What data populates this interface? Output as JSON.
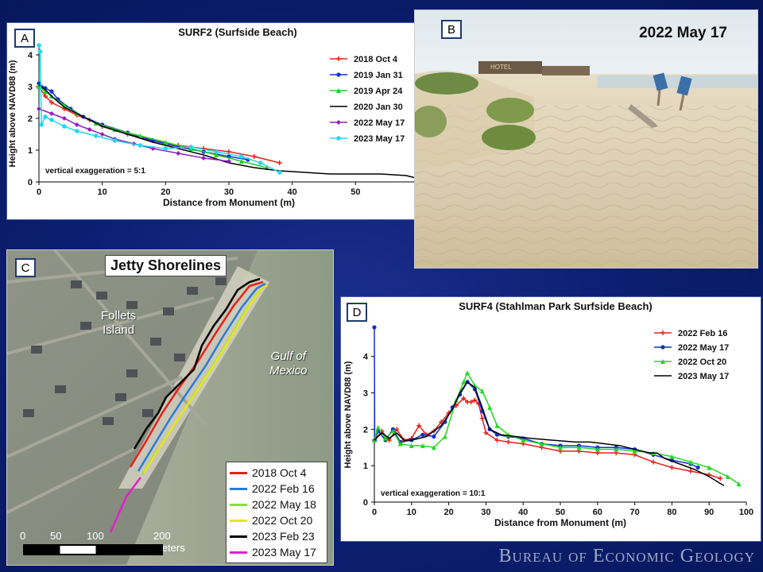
{
  "panels": {
    "a_label": "A",
    "b_label": "B",
    "c_label": "C",
    "d_label": "D"
  },
  "photo": {
    "date": "2022 May 17",
    "sign_text": "HOTEL"
  },
  "map": {
    "title": "Jetty Shorelines",
    "place1": "Follets\nIsland",
    "place1_line1": "Follets",
    "place1_line2": "Island",
    "place2_line1": "Gulf of",
    "place2_line2": "Mexico",
    "scale_labels": [
      "0",
      "50",
      "100",
      "200 Meters"
    ],
    "legend": [
      {
        "label": "2018 Oct 4",
        "color": "#e8201a"
      },
      {
        "label": "2022 Feb 16",
        "color": "#2a7ad8"
      },
      {
        "label": "2022 May 18",
        "color": "#8de22a"
      },
      {
        "label": "2022 Oct 20",
        "color": "#e8e51a"
      },
      {
        "label": "2023 Feb 23",
        "color": "#000000"
      },
      {
        "label": "2023 May 17",
        "color": "#e020c8"
      }
    ]
  },
  "chart_data": [
    {
      "type": "line",
      "title": "SURF2 (Surfside Beach)",
      "xlabel": "Distance from Monument (m)",
      "ylabel": "Height above NAVD88 (m)",
      "xlim": [
        0,
        60
      ],
      "ylim": [
        0,
        4.3
      ],
      "xticks": [
        0,
        10,
        20,
        30,
        40,
        50,
        60
      ],
      "yticks": [
        0,
        1,
        2,
        3,
        4
      ],
      "annotation": "vertical exaggeration = 5:1",
      "legend_position": "top-right",
      "series": [
        {
          "name": "2018 Oct 4",
          "color": "#e8201a",
          "marker": "plus",
          "x": [
            0,
            1,
            2,
            4,
            6,
            8,
            10,
            14,
            18,
            22,
            26,
            30,
            34,
            38
          ],
          "y": [
            3.0,
            2.7,
            2.5,
            2.3,
            2.1,
            1.95,
            1.75,
            1.5,
            1.3,
            1.15,
            1.05,
            0.95,
            0.8,
            0.6
          ]
        },
        {
          "name": "2019 Jan 31",
          "color": "#1030d8",
          "marker": "dot",
          "x": [
            0,
            1,
            2,
            3,
            5,
            7,
            10,
            14,
            18,
            22,
            26,
            30,
            33
          ],
          "y": [
            3.1,
            2.95,
            2.85,
            2.6,
            2.3,
            2.05,
            1.8,
            1.55,
            1.3,
            1.1,
            0.95,
            0.8,
            0.7
          ]
        },
        {
          "name": "2019 Apr 24",
          "color": "#20d020",
          "marker": "triangle",
          "x": [
            0,
            1,
            2,
            4,
            6,
            9,
            12,
            16,
            20,
            24,
            28,
            32,
            36
          ],
          "y": [
            3.0,
            2.85,
            2.7,
            2.4,
            2.15,
            1.85,
            1.65,
            1.45,
            1.25,
            1.05,
            0.85,
            0.65,
            0.45
          ]
        },
        {
          "name": "2020 Jan 30",
          "color": "#000000",
          "marker": "none",
          "x": [
            0,
            1,
            2,
            4,
            6,
            8,
            10,
            14,
            18,
            22,
            26,
            30,
            34,
            38,
            42,
            46,
            50,
            54,
            58,
            60
          ],
          "y": [
            3.05,
            2.9,
            2.7,
            2.35,
            2.15,
            1.95,
            1.75,
            1.5,
            1.25,
            1.05,
            0.85,
            0.6,
            0.45,
            0.35,
            0.3,
            0.25,
            0.25,
            0.25,
            0.2,
            0.1
          ]
        },
        {
          "name": "2022 May 17",
          "color": "#9020c0",
          "marker": "diamond",
          "x": [
            0,
            2,
            4,
            6,
            8,
            10,
            12,
            15,
            18,
            22,
            26,
            30
          ],
          "y": [
            2.3,
            2.15,
            2.0,
            1.8,
            1.65,
            1.5,
            1.35,
            1.2,
            1.05,
            0.9,
            0.75,
            0.65
          ]
        },
        {
          "name": "2023 May 17",
          "color": "#20d8f0",
          "marker": "star",
          "x": [
            0,
            0.2,
            0.4,
            1,
            2,
            4,
            6,
            9,
            12,
            16,
            20,
            24,
            28,
            32,
            35,
            38
          ],
          "y": [
            4.3,
            4.1,
            1.8,
            2.05,
            1.95,
            1.75,
            1.6,
            1.45,
            1.3,
            1.15,
            1.05,
            1.1,
            0.95,
            0.8,
            0.6,
            0.3
          ]
        }
      ]
    },
    {
      "type": "line",
      "title": "SURF4 (Stahlman Park Surfside Beach)",
      "xlabel": "Distance from Monument (m)",
      "ylabel": "Height above NAVD88 (m)",
      "xlim": [
        0,
        100
      ],
      "ylim": [
        0,
        4.8
      ],
      "xticks": [
        0,
        10,
        20,
        30,
        40,
        50,
        60,
        70,
        80,
        90,
        100
      ],
      "yticks": [
        0,
        1,
        2,
        3,
        4
      ],
      "annotation": "vertical exaggeration = 10:1",
      "legend_position": "top-right",
      "series": [
        {
          "name": "2022 Feb 16",
          "color": "#e8201a",
          "marker": "plus",
          "x": [
            0,
            2,
            4,
            6,
            8,
            10,
            12,
            14,
            16,
            18,
            20,
            22,
            24,
            25,
            26,
            27,
            28,
            29,
            30,
            33,
            36,
            40,
            45,
            50,
            55,
            60,
            65,
            70,
            75,
            80,
            85,
            90,
            93
          ],
          "y": [
            1.7,
            1.95,
            1.7,
            2.0,
            1.7,
            1.75,
            2.1,
            1.85,
            1.95,
            2.2,
            2.45,
            2.65,
            2.85,
            2.75,
            2.75,
            2.8,
            2.7,
            2.3,
            1.9,
            1.7,
            1.65,
            1.6,
            1.5,
            1.4,
            1.4,
            1.35,
            1.35,
            1.3,
            1.1,
            0.95,
            0.85,
            0.75,
            0.65
          ]
        },
        {
          "name": "2022 May 17",
          "color": "#1030d8",
          "marker": "dot",
          "x": [
            0,
            0.1,
            1,
            3,
            5,
            7,
            10,
            13,
            16,
            19,
            21,
            23,
            25,
            27,
            29,
            31,
            33,
            36,
            40,
            45,
            50,
            55,
            60,
            65,
            70,
            75,
            80,
            85,
            87
          ],
          "y": [
            4.8,
            1.7,
            1.95,
            1.7,
            2.0,
            1.65,
            1.7,
            1.85,
            1.8,
            2.2,
            2.6,
            2.95,
            3.3,
            3.1,
            2.5,
            2.0,
            1.85,
            1.8,
            1.75,
            1.6,
            1.55,
            1.55,
            1.5,
            1.5,
            1.45,
            1.3,
            1.15,
            1.05,
            0.95
          ]
        },
        {
          "name": "2022 Oct 20",
          "color": "#20d820",
          "marker": "triangle",
          "x": [
            0,
            1,
            3,
            5,
            7,
            10,
            13,
            16,
            19,
            22,
            24,
            25,
            27,
            29,
            31,
            33,
            36,
            40,
            45,
            50,
            55,
            60,
            65,
            70,
            75,
            80,
            85,
            90,
            95,
            98
          ],
          "y": [
            1.7,
            2.05,
            1.75,
            1.95,
            1.6,
            1.55,
            1.55,
            1.5,
            1.8,
            2.8,
            3.3,
            3.55,
            3.2,
            3.05,
            2.6,
            2.1,
            1.85,
            1.7,
            1.6,
            1.5,
            1.5,
            1.45,
            1.45,
            1.4,
            1.35,
            1.25,
            1.1,
            0.95,
            0.7,
            0.5
          ]
        },
        {
          "name": "2023 May 17",
          "color": "#000000",
          "marker": "none",
          "x": [
            0,
            2,
            4,
            6,
            8,
            10,
            14,
            18,
            21,
            23,
            25,
            27,
            29,
            31,
            34,
            38,
            42,
            48,
            54,
            58,
            62,
            66,
            70,
            74,
            76,
            78,
            82,
            86,
            90,
            94
          ],
          "y": [
            1.7,
            1.9,
            1.75,
            1.9,
            1.7,
            1.7,
            1.8,
            2.1,
            2.55,
            3.0,
            3.3,
            3.15,
            2.6,
            2.0,
            1.85,
            1.8,
            1.75,
            1.7,
            1.65,
            1.65,
            1.6,
            1.55,
            1.45,
            1.35,
            1.35,
            1.2,
            1.05,
            0.9,
            0.7,
            0.45
          ]
        }
      ]
    }
  ],
  "footer": {
    "org": "Bureau of Economic Geology"
  }
}
